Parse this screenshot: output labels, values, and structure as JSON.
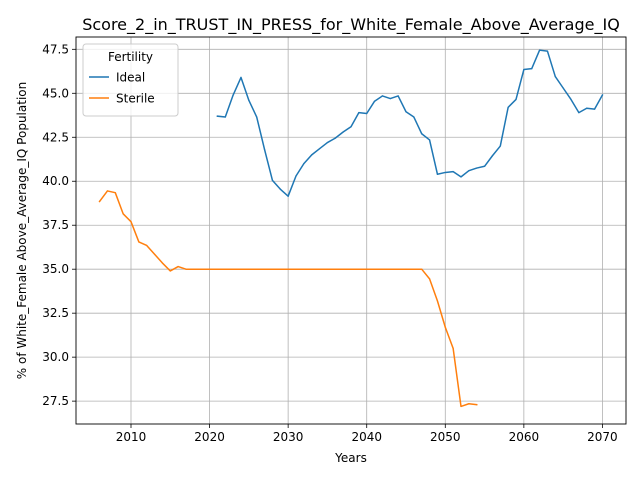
{
  "chart_data": {
    "type": "line",
    "title": "Score_2_in_TRUST_IN_PRESS_for_White_Female_Above_Average_IQ",
    "xlabel": "Years",
    "ylabel": "% of White_Female Above_Average_IQ Population",
    "xlim": [
      2003,
      2073
    ],
    "ylim": [
      26.2,
      48.2
    ],
    "xticks": [
      2010,
      2020,
      2030,
      2040,
      2050,
      2060,
      2070
    ],
    "yticks": [
      27.5,
      30.0,
      32.5,
      35.0,
      37.5,
      40.0,
      42.5,
      45.0,
      47.5
    ],
    "ytick_labels": [
      "27.5",
      "30.0",
      "32.5",
      "35.0",
      "37.5",
      "40.0",
      "42.5",
      "45.0",
      "47.5"
    ],
    "grid": true,
    "legend": {
      "title": "Fertility",
      "placement": "top-left"
    },
    "series": [
      {
        "name": "Ideal",
        "color": "#1f77b4",
        "points": [
          [
            2021,
            43.7
          ],
          [
            2022,
            43.65
          ],
          [
            2023,
            44.9
          ],
          [
            2024,
            45.9
          ],
          [
            2025,
            44.6
          ],
          [
            2026,
            43.65
          ],
          [
            2027,
            41.8
          ],
          [
            2028,
            40.05
          ],
          [
            2029,
            39.55
          ],
          [
            2030,
            39.15
          ],
          [
            2031,
            40.3
          ],
          [
            2032,
            41.0
          ],
          [
            2033,
            41.5
          ],
          [
            2034,
            41.85
          ],
          [
            2035,
            42.2
          ],
          [
            2036,
            42.45
          ],
          [
            2037,
            42.8
          ],
          [
            2038,
            43.1
          ],
          [
            2039,
            43.9
          ],
          [
            2040,
            43.85
          ],
          [
            2041,
            44.55
          ],
          [
            2042,
            44.85
          ],
          [
            2043,
            44.7
          ],
          [
            2044,
            44.85
          ],
          [
            2045,
            43.95
          ],
          [
            2046,
            43.65
          ],
          [
            2047,
            42.7
          ],
          [
            2048,
            42.35
          ],
          [
            2049,
            40.4
          ],
          [
            2050,
            40.5
          ],
          [
            2051,
            40.55
          ],
          [
            2052,
            40.25
          ],
          [
            2053,
            40.6
          ],
          [
            2054,
            40.75
          ],
          [
            2055,
            40.85
          ],
          [
            2056,
            41.45
          ],
          [
            2057,
            42.0
          ],
          [
            2058,
            44.2
          ],
          [
            2059,
            44.65
          ],
          [
            2060,
            46.35
          ],
          [
            2061,
            46.4
          ],
          [
            2062,
            47.45
          ],
          [
            2063,
            47.4
          ],
          [
            2064,
            45.95
          ],
          [
            2065,
            45.3
          ],
          [
            2066,
            44.65
          ],
          [
            2067,
            43.9
          ],
          [
            2068,
            44.15
          ],
          [
            2069,
            44.1
          ],
          [
            2070,
            44.9
          ]
        ]
      },
      {
        "name": "Sterile",
        "color": "#ff7f0e",
        "points": [
          [
            2006,
            38.85
          ],
          [
            2007,
            39.45
          ],
          [
            2008,
            39.35
          ],
          [
            2009,
            38.15
          ],
          [
            2010,
            37.7
          ],
          [
            2011,
            36.55
          ],
          [
            2012,
            36.35
          ],
          [
            2013,
            35.85
          ],
          [
            2014,
            35.35
          ],
          [
            2015,
            34.9
          ],
          [
            2016,
            35.15
          ],
          [
            2017,
            35.0
          ],
          [
            2018,
            35.0
          ],
          [
            2020,
            35.0
          ],
          [
            2025,
            35.0
          ],
          [
            2030,
            35.0
          ],
          [
            2035,
            35.0
          ],
          [
            2040,
            35.0
          ],
          [
            2045,
            35.0
          ],
          [
            2047,
            35.0
          ],
          [
            2048,
            34.45
          ],
          [
            2049,
            33.2
          ],
          [
            2050,
            31.7
          ],
          [
            2051,
            30.5
          ],
          [
            2052,
            27.2
          ],
          [
            2053,
            27.35
          ],
          [
            2054,
            27.3
          ]
        ]
      }
    ]
  }
}
